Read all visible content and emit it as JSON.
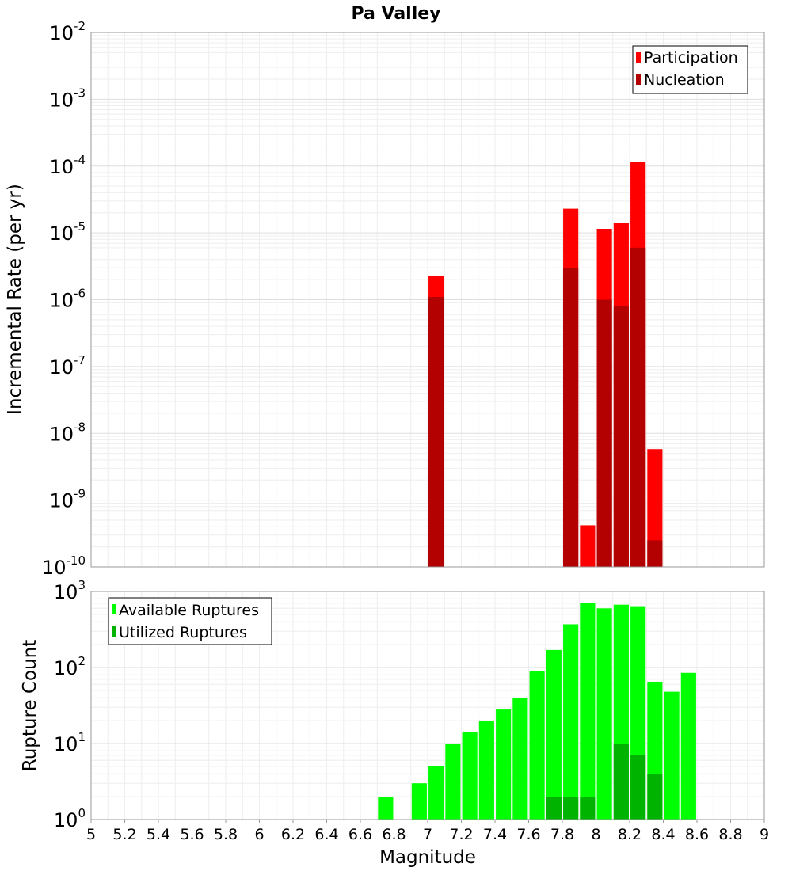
{
  "chart_data": [
    {
      "type": "bar",
      "title": "Pa Valley",
      "ylabel": "Incremental Rate (per yr)",
      "yscale": "log",
      "ylim_exp": [
        -10,
        -2
      ],
      "xlim": [
        5,
        9
      ],
      "legend_position": "top-right",
      "grid": true,
      "series": [
        {
          "name": "Participation",
          "color": "#ff0000",
          "points": [
            {
              "x": 7.05,
              "y": 2.3e-06
            },
            {
              "x": 7.85,
              "y": 2.3e-05
            },
            {
              "x": 7.95,
              "y": 4.2e-10
            },
            {
              "x": 8.05,
              "y": 1.15e-05
            },
            {
              "x": 8.15,
              "y": 1.4e-05
            },
            {
              "x": 8.25,
              "y": 0.000115
            },
            {
              "x": 8.35,
              "y": 5.8e-09
            }
          ]
        },
        {
          "name": "Nucleation",
          "color": "#b30000",
          "points": [
            {
              "x": 7.05,
              "y": 1.1e-06
            },
            {
              "x": 7.85,
              "y": 3e-06
            },
            {
              "x": 8.05,
              "y": 1e-06
            },
            {
              "x": 8.15,
              "y": 8e-07
            },
            {
              "x": 8.25,
              "y": 6e-06
            },
            {
              "x": 8.35,
              "y": 2.5e-10
            }
          ]
        }
      ]
    },
    {
      "type": "bar",
      "xlabel": "Magnitude",
      "ylabel": "Rupture Count",
      "yscale": "log",
      "ylim_exp": [
        0,
        3
      ],
      "xlim": [
        5,
        9
      ],
      "x_ticks": [
        "5",
        "5.2",
        "5.4",
        "5.6",
        "5.8",
        "6",
        "6.2",
        "6.4",
        "6.6",
        "6.8",
        "7",
        "7.2",
        "7.4",
        "7.6",
        "7.8",
        "8",
        "8.2",
        "8.4",
        "8.6",
        "8.8",
        "9"
      ],
      "legend_position": "top-left",
      "grid": true,
      "series": [
        {
          "name": "Available Ruptures",
          "color": "#00ff00",
          "points": [
            {
              "x": 6.75,
              "y": 2
            },
            {
              "x": 6.95,
              "y": 3
            },
            {
              "x": 7.05,
              "y": 5
            },
            {
              "x": 7.15,
              "y": 10
            },
            {
              "x": 7.25,
              "y": 14
            },
            {
              "x": 7.35,
              "y": 20
            },
            {
              "x": 7.45,
              "y": 28
            },
            {
              "x": 7.55,
              "y": 40
            },
            {
              "x": 7.65,
              "y": 90
            },
            {
              "x": 7.75,
              "y": 170
            },
            {
              "x": 7.85,
              "y": 370
            },
            {
              "x": 7.95,
              "y": 700
            },
            {
              "x": 8.05,
              "y": 600
            },
            {
              "x": 8.15,
              "y": 670
            },
            {
              "x": 8.25,
              "y": 640
            },
            {
              "x": 8.35,
              "y": 65
            },
            {
              "x": 8.45,
              "y": 48
            },
            {
              "x": 8.55,
              "y": 85
            },
            {
              "x": 8.65,
              "y": 1
            }
          ]
        },
        {
          "name": "Utilized Ruptures",
          "color": "#00b300",
          "points": [
            {
              "x": 7.05,
              "y": 1
            },
            {
              "x": 7.65,
              "y": 1
            },
            {
              "x": 7.75,
              "y": 2
            },
            {
              "x": 7.85,
              "y": 2
            },
            {
              "x": 7.95,
              "y": 2
            },
            {
              "x": 8.05,
              "y": 1
            },
            {
              "x": 8.15,
              "y": 10
            },
            {
              "x": 8.25,
              "y": 7
            },
            {
              "x": 8.35,
              "y": 4
            }
          ]
        }
      ]
    }
  ]
}
